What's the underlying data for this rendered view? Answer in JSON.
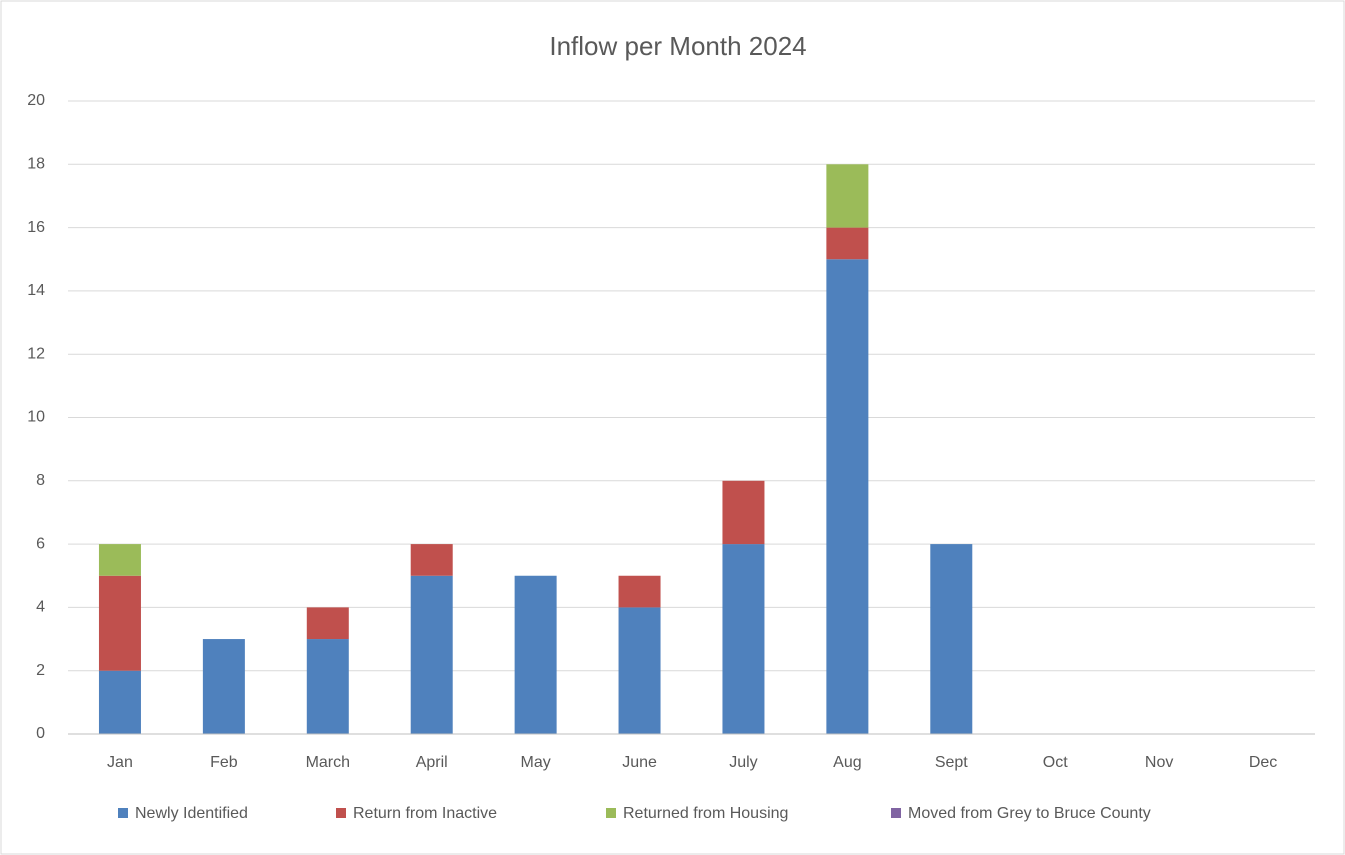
{
  "chart_data": {
    "type": "stacked_bar",
    "title": "Inflow per Month 2024",
    "categories": [
      "Jan",
      "Feb",
      "March",
      "April",
      "May",
      "June",
      "July",
      "Aug",
      "Sept",
      "Oct",
      "Nov",
      "Dec"
    ],
    "series": [
      {
        "name": "Newly Identified",
        "color": "#4f81bd",
        "values": [
          2,
          3,
          3,
          5,
          5,
          4,
          6,
          15,
          6,
          null,
          null,
          null
        ]
      },
      {
        "name": "Return from Inactive",
        "color": "#c0504d",
        "values": [
          3,
          0,
          1,
          1,
          0,
          1,
          2,
          1,
          0,
          null,
          null,
          null
        ]
      },
      {
        "name": "Returned from Housing",
        "color": "#9bbb59",
        "values": [
          1,
          0,
          0,
          0,
          0,
          0,
          0,
          2,
          0,
          null,
          null,
          null
        ]
      },
      {
        "name": "Moved from Grey to Bruce County",
        "color": "#8064a2",
        "values": [
          0,
          0,
          0,
          0,
          0,
          0,
          0,
          0,
          0,
          null,
          null,
          null
        ]
      }
    ],
    "ylim": [
      0,
      20
    ],
    "yticks": [
      0,
      2,
      4,
      6,
      8,
      10,
      12,
      14,
      16,
      18,
      20
    ],
    "grid": true,
    "legend": "bottom"
  }
}
